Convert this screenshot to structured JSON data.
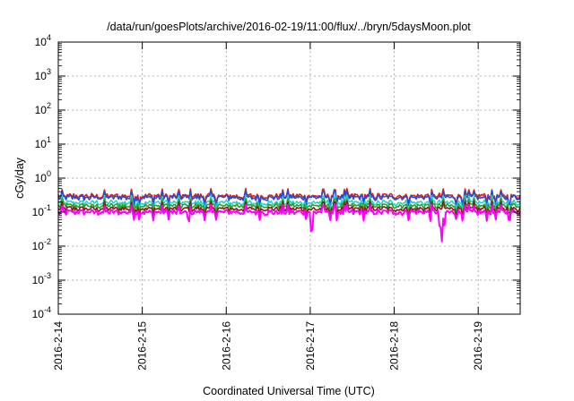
{
  "chart_data": {
    "type": "line",
    "title": "/data/run/goesPlots/archive/2016-02-19/11:00/flux/../bryn/5daysMoon.plot",
    "xlabel": "Coordinated Universal Time (UTC)",
    "ylabel": "cGy/day",
    "y_scale": "log",
    "ylim": [
      0.0001,
      10000
    ],
    "y_ticks": [
      {
        "base": "10",
        "exp": "-4"
      },
      {
        "base": "10",
        "exp": "-3"
      },
      {
        "base": "10",
        "exp": "-2"
      },
      {
        "base": "10",
        "exp": "-1"
      },
      {
        "base": "10",
        "exp": "0"
      },
      {
        "base": "10",
        "exp": "1"
      },
      {
        "base": "10",
        "exp": "2"
      },
      {
        "base": "10",
        "exp": "3"
      },
      {
        "base": "10",
        "exp": "4"
      }
    ],
    "x_ticks": [
      "2016-2-14",
      "2016-2-15",
      "2016-2-16",
      "2016-2-17",
      "2016-2-18",
      "2016-2-19"
    ],
    "xlim": [
      "2016-2-14",
      "2016-2-19 12:00"
    ],
    "grid": true,
    "legend": "none",
    "series": [
      {
        "color": "#e41a1c",
        "level": 0.3
      },
      {
        "color": "#1f4fd8",
        "level": 0.27
      },
      {
        "color": "#2ad4c0",
        "level": 0.19
      },
      {
        "color": "#2e9e2e",
        "level": 0.155
      },
      {
        "color": "#8b1a1a",
        "level": 0.125
      },
      {
        "color": "#ff00ff",
        "level": 0.1
      }
    ]
  }
}
